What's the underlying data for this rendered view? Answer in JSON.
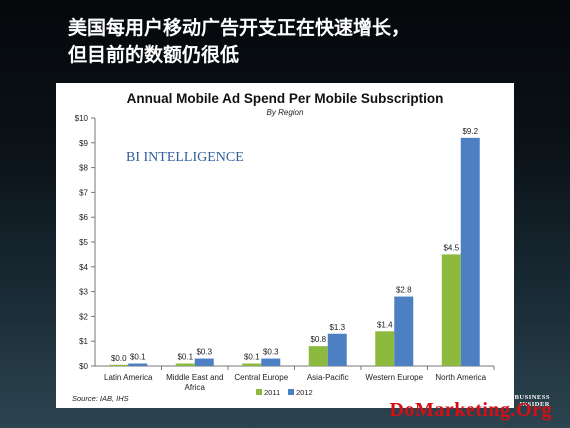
{
  "headline": {
    "line1": "美国每用户移动广告开支正在快速增长，",
    "line2": "但目前的数额仍很低"
  },
  "chart_data": {
    "type": "bar",
    "title": "Annual Mobile Ad Spend Per Mobile Subscription",
    "subtitle": "By Region",
    "brand": "BI INTELLIGENCE",
    "source": "Source: IAB, IHS",
    "categories": [
      "Latin America",
      "Middle East and Africa",
      "Central Europe",
      "Asia-Pacific",
      "Western Europe",
      "North America"
    ],
    "series": [
      {
        "name": "2011",
        "color": "#8db93f",
        "values": [
          0.0,
          0.1,
          0.1,
          0.8,
          1.4,
          4.5
        ],
        "labels": [
          "$0.0",
          "$0.1",
          "$0.1",
          "$0.8",
          "$1.4",
          "$4.5"
        ]
      },
      {
        "name": "2012",
        "color": "#4d80c2",
        "values": [
          0.1,
          0.3,
          0.3,
          1.3,
          2.8,
          9.2
        ],
        "labels": [
          "$0.1",
          "$0.3",
          "$0.3",
          "$1.3",
          "$2.8",
          "$9.2"
        ]
      }
    ],
    "yticks": [
      "$0",
      "$1",
      "$2",
      "$3",
      "$4",
      "$5",
      "$6",
      "$7",
      "$8",
      "$9",
      "$10"
    ],
    "ylim": [
      0,
      10
    ],
    "legend_position": "bottom",
    "grid": false
  },
  "watermark": {
    "site": "DoMarketing.Org",
    "logo_line1": "BUSINESS",
    "logo_line2": "INSIDER"
  }
}
